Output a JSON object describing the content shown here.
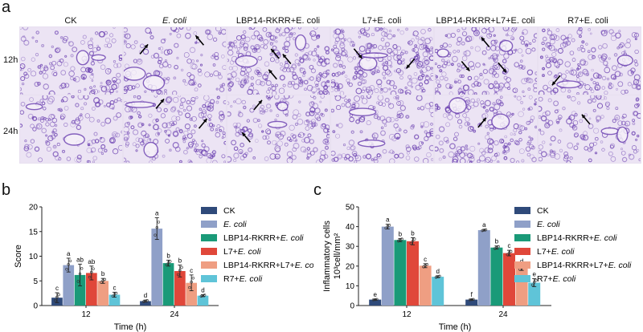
{
  "panel_a": {
    "letter": "a",
    "columns": [
      "CK",
      "E. coli",
      "LBP14-RKRR+E. coli",
      "L7+E. coli",
      "LBP14-RKRR+L7+E. coli",
      "R7+E. coli"
    ],
    "rows": [
      "12h",
      "24h"
    ],
    "tissue_color": "#6a3fb0",
    "background_color": "#ece4f4",
    "arrow_color": "#000000"
  },
  "panel_b": {
    "letter": "b"
  },
  "panel_c": {
    "letter": "c"
  },
  "chart_data": [
    {
      "type": "bar",
      "ylabel": "Score",
      "xlabel": "Time (h)",
      "ylim": [
        0,
        20
      ],
      "yticks": [
        0,
        5,
        10,
        15,
        20
      ],
      "categories": [
        "12",
        "24"
      ],
      "series": [
        {
          "name": "CK",
          "color": "#2f4a7a",
          "values": [
            1.6,
            0.9
          ],
          "errors": [
            1.0,
            0.2
          ],
          "letters": [
            "c",
            "d"
          ]
        },
        {
          "name": "E. coli",
          "color": "#8fa0c8",
          "values": [
            8.2,
            15.6
          ],
          "errors": [
            1.4,
            2.2
          ],
          "letters": [
            "a",
            "a"
          ]
        },
        {
          "name": "LBP14-RKRR+E. coli",
          "color": "#1a9a78",
          "values": [
            6.2,
            8.6
          ],
          "errors": [
            2.2,
            0.6
          ],
          "letters": [
            "ab",
            "b"
          ]
        },
        {
          "name": "L7+E. coli",
          "color": "#e0473a",
          "values": [
            6.6,
            7.0
          ],
          "errors": [
            1.4,
            1.2
          ],
          "letters": [
            "ab",
            "b"
          ]
        },
        {
          "name": "LBP14-RKRR+L7+E. coli",
          "color": "#ef9e82",
          "values": [
            5.0,
            4.6
          ],
          "errors": [
            0.5,
            1.6
          ],
          "letters": [
            "b",
            "c"
          ]
        },
        {
          "name": "R7+E. coli",
          "color": "#5fc4d8",
          "values": [
            2.2,
            2.0
          ],
          "errors": [
            0.5,
            0.2
          ],
          "letters": [
            "c",
            "d"
          ]
        }
      ],
      "legend": "right"
    },
    {
      "type": "bar",
      "ylabel": "Inflammatory cells",
      "ylabel_unit": "10³cell/mm²",
      "xlabel": "Time (h)",
      "ylim": [
        0,
        50
      ],
      "yticks": [
        0,
        10,
        20,
        30,
        40,
        50
      ],
      "categories": [
        "12",
        "24"
      ],
      "series": [
        {
          "name": "CK",
          "color": "#2f4a7a",
          "values": [
            3.0,
            3.0
          ],
          "errors": [
            0.2,
            0.2
          ],
          "letters": [
            "e",
            "f"
          ]
        },
        {
          "name": "E. coli",
          "color": "#8fa0c8",
          "values": [
            40.0,
            38.2
          ],
          "errors": [
            1.2,
            0.4
          ],
          "letters": [
            "a",
            "a"
          ]
        },
        {
          "name": "LBP14-RKRR+E. coli",
          "color": "#1a9a78",
          "values": [
            33.2,
            29.4
          ],
          "errors": [
            0.8,
            0.8
          ],
          "letters": [
            "b",
            "b"
          ]
        },
        {
          "name": "L7+E. coli",
          "color": "#e0473a",
          "values": [
            32.6,
            26.6
          ],
          "errors": [
            1.8,
            1.4
          ],
          "letters": [
            "b",
            "c"
          ]
        },
        {
          "name": "LBP14-RKRR+L7+E. coli",
          "color": "#ef9e82",
          "values": [
            20.2,
            19.0
          ],
          "errors": [
            1.0,
            1.2
          ],
          "letters": [
            "c",
            "d"
          ]
        },
        {
          "name": "R7+E. coli",
          "color": "#5fc4d8",
          "values": [
            14.6,
            11.6
          ],
          "errors": [
            0.5,
            2.0
          ],
          "letters": [
            "d",
            "e"
          ]
        }
      ],
      "legend": "right"
    }
  ]
}
